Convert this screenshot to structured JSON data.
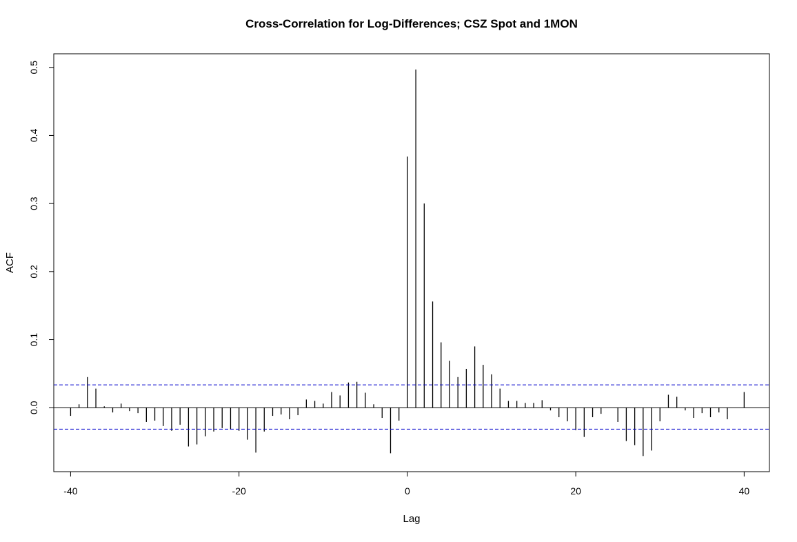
{
  "chart_data": {
    "type": "bar",
    "title": "Cross-Correlation for Log-Differences;  CSZ Spot and 1MON",
    "xlabel": "Lag",
    "ylabel": "ACF",
    "xlim": [
      -42,
      43
    ],
    "ylim": [
      -0.094,
      0.52
    ],
    "x_ticks": [
      -40,
      -20,
      0,
      20,
      40
    ],
    "x_tick_labels": [
      "-40",
      "-20",
      "0",
      "20",
      "40"
    ],
    "y_ticks": [
      0.0,
      0.1,
      0.2,
      0.3,
      0.4,
      0.5
    ],
    "y_tick_labels": [
      "0.0",
      "0.1",
      "0.2",
      "0.3",
      "0.4",
      "0.5"
    ],
    "confidence_bounds": [
      0.0335,
      -0.0315
    ],
    "confidence_line_color": "#0000cc",
    "bar_color": "#000000",
    "grid": false,
    "legend": "none",
    "lags": [
      -40,
      -39,
      -38,
      -37,
      -36,
      -35,
      -34,
      -33,
      -32,
      -31,
      -30,
      -29,
      -28,
      -27,
      -26,
      -25,
      -24,
      -23,
      -22,
      -21,
      -20,
      -19,
      -18,
      -17,
      -16,
      -15,
      -14,
      -13,
      -12,
      -11,
      -10,
      -9,
      -8,
      -7,
      -6,
      -5,
      -4,
      -3,
      -2,
      -1,
      0,
      1,
      2,
      3,
      4,
      5,
      6,
      7,
      8,
      9,
      10,
      11,
      12,
      13,
      14,
      15,
      16,
      17,
      18,
      19,
      20,
      21,
      22,
      23,
      24,
      25,
      26,
      27,
      28,
      29,
      30,
      31,
      32,
      33,
      34,
      35,
      36,
      37,
      38,
      39,
      40
    ],
    "values": [
      -0.012,
      0.005,
      0.045,
      0.028,
      0.002,
      -0.007,
      0.006,
      -0.005,
      -0.008,
      -0.021,
      -0.019,
      -0.027,
      -0.034,
      -0.025,
      -0.057,
      -0.054,
      -0.042,
      -0.035,
      -0.03,
      -0.032,
      -0.034,
      -0.047,
      -0.066,
      -0.035,
      -0.012,
      -0.01,
      -0.017,
      -0.011,
      0.012,
      0.01,
      0.006,
      0.023,
      0.018,
      0.037,
      0.038,
      0.022,
      0.005,
      -0.015,
      -0.067,
      -0.019,
      0.369,
      0.497,
      0.3,
      0.156,
      0.096,
      0.069,
      0.045,
      0.057,
      0.09,
      0.063,
      0.049,
      0.028,
      0.01,
      0.01,
      0.007,
      0.007,
      0.011,
      -0.004,
      -0.014,
      -0.02,
      -0.033,
      -0.043,
      -0.014,
      -0.009,
      0.0,
      -0.021,
      -0.049,
      -0.055,
      -0.071,
      -0.063,
      -0.02,
      0.019,
      0.016,
      -0.004,
      -0.015,
      -0.008,
      -0.014,
      -0.007,
      -0.017,
      0.0,
      0.023
    ]
  }
}
